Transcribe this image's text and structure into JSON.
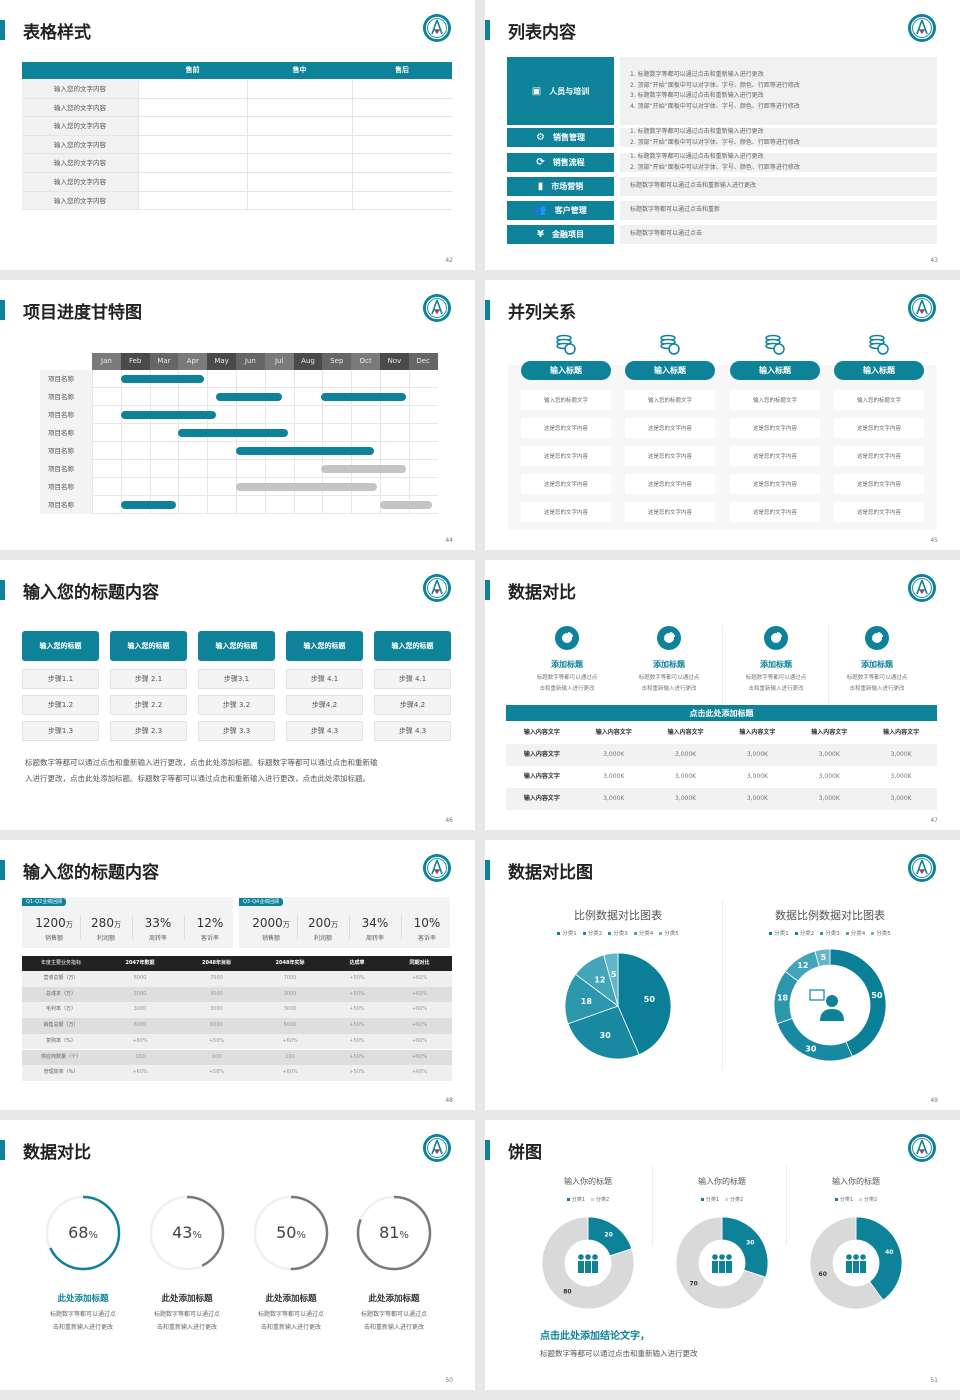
{
  "colors": {
    "accent": "#0e8299",
    "gray_bar": "#c4c4c4",
    "dark_header": "#222222",
    "pie": [
      "#0a7f97",
      "#1889a1",
      "#2c96ad",
      "#44a5ba",
      "#63b6c7"
    ],
    "ring_gray": "#7a7a7a",
    "donut_gray": "#d9d9d9"
  },
  "s42": {
    "title": "表格样式",
    "page": "42",
    "headers": [
      "",
      "售前",
      "售中",
      "售后"
    ],
    "rows": [
      "输入您的文字内容",
      "输入您的文字内容",
      "输入您的文字内容",
      "输入您的文字内容",
      "输入您的文字内容",
      "输入您的文字内容",
      "输入您的文字内容"
    ]
  },
  "s43": {
    "title": "列表内容",
    "page": "43",
    "items": [
      {
        "icon": "training-icon",
        "label": "人员与培训",
        "lines": [
          "1.  标题数字等都可以通过点击和重新输入进行更改",
          "2.  顶部“开始”面板中可以对字体、字号、颜色、行距等进行修改",
          "3.  标题数字等都可以通过点击和重新输入进行更改",
          "4.  顶部“开始”面板中可以对字体、字号、颜色、行距等进行修改"
        ]
      },
      {
        "icon": "sales-management-icon",
        "label": "销售管理",
        "lines": [
          "1.  标题数字等都可以通过点击和重新输入进行更改",
          "2.  顶部“开始”面板中可以对字体、字号、颜色、行距等进行修改"
        ]
      },
      {
        "icon": "sales-process-icon",
        "label": "销售流程",
        "lines": [
          "1.  标题数字等都可以通过点击和重新输入进行更改",
          "2.  顶部“开始”面板中可以对字体、字号、颜色、行距等进行修改"
        ]
      },
      {
        "icon": "bar-chart-icon",
        "label": "市场营销",
        "lines": [
          "标题数字等都可以通过点击和重新输入进行更改"
        ]
      },
      {
        "icon": "customers-icon",
        "label": "客户管理",
        "lines": [
          "标题数字等都可以通过点击和重新"
        ]
      },
      {
        "icon": "finance-icon",
        "label": "金融项目",
        "lines": [
          "标题数字等都可以通过点击"
        ]
      }
    ]
  },
  "s44": {
    "title": "项目进度甘特图",
    "page": "44",
    "months": [
      "Jan",
      "Feb",
      "Mar",
      "Apr",
      "May",
      "Jun",
      "Jul",
      "Aug",
      "Sep",
      "Oct",
      "Nov",
      "Dec"
    ],
    "tasks": [
      {
        "name": "项目名称",
        "bars": [
          {
            "start": 1.0,
            "end": 3.9,
            "color": "teal"
          }
        ]
      },
      {
        "name": "项目名称",
        "bars": [
          {
            "start": 4.3,
            "end": 6.6,
            "color": "teal"
          },
          {
            "start": 7.95,
            "end": 10.9,
            "color": "teal"
          }
        ]
      },
      {
        "name": "项目名称",
        "bars": [
          {
            "start": 1.0,
            "end": 4.3,
            "color": "teal"
          }
        ]
      },
      {
        "name": "项目名称",
        "bars": [
          {
            "start": 3.0,
            "end": 6.8,
            "color": "teal"
          }
        ]
      },
      {
        "name": "项目名称",
        "bars": [
          {
            "start": 5.0,
            "end": 9.8,
            "color": "teal"
          }
        ]
      },
      {
        "name": "项目名称",
        "bars": [
          {
            "start": 7.95,
            "end": 10.9,
            "color": "gray"
          }
        ]
      },
      {
        "name": "项目名称",
        "bars": [
          {
            "start": 5.0,
            "end": 9.9,
            "color": "gray"
          }
        ]
      },
      {
        "name": "项目名称",
        "bars": [
          {
            "start": 1.0,
            "end": 2.9,
            "color": "teal"
          },
          {
            "start": 10.0,
            "end": 11.8,
            "color": "gray"
          }
        ]
      }
    ]
  },
  "s45": {
    "title": "并列关系",
    "page": "45",
    "columns": [
      {
        "header": "输入标题",
        "cells": [
          "输入您的标题文字",
          "这是您的文字内容",
          "这是您的文字内容",
          "这是您的文字内容",
          "这是您的文字内容"
        ]
      },
      {
        "header": "输入标题",
        "cells": [
          "输入您的标题文字",
          "这是您的文字内容",
          "这是您的文字内容",
          "这是您的文字内容",
          "这是您的文字内容"
        ]
      },
      {
        "header": "输入标题",
        "cells": [
          "输入您的标题文字",
          "这是您的文字内容",
          "这是您的文字内容",
          "这是您的文字内容",
          "这是您的文字内容"
        ]
      },
      {
        "header": "输入标题",
        "cells": [
          "输入您的标题文字",
          "这是您的文字内容",
          "这是您的文字内容",
          "这是您的文字内容",
          "这是您的文字内容"
        ]
      }
    ]
  },
  "s46": {
    "title": "输入您的标题内容",
    "page": "46",
    "columns": [
      {
        "header": "输入您的标题",
        "steps": [
          "步骤1.1",
          "步骤1.2",
          "步骤1.3"
        ]
      },
      {
        "header": "输入您的标题",
        "steps": [
          "步骤 2.1",
          "步骤 2.2",
          "步骤 2.3"
        ]
      },
      {
        "header": "输入您的标题",
        "steps": [
          "步骤3.1",
          "步骤 3.2",
          "步骤 3.3"
        ]
      },
      {
        "header": "输入您的标题",
        "steps": [
          "步骤 4.1",
          "步骤4.2",
          "步骤 4.3"
        ]
      },
      {
        "header": "输入您的标题",
        "steps": [
          "步骤 4.1",
          "步骤4.2",
          "步骤 4.3"
        ]
      }
    ],
    "paragraph": [
      "标题数字等都可以通过点击和重新输入进行更改，点击此处添加标题。标题数字等都可以通过点击和重新输",
      "入进行更改，点击此处添加标题。标题数字等都可以通过点击和重新输入进行更改，点击此处添加标题。"
    ]
  },
  "s47": {
    "title": "数据对比",
    "page": "47",
    "features": [
      {
        "title": "添加标题",
        "desc": [
          "标题数字等都可以通过点",
          "击和重新输入进行更改"
        ]
      },
      {
        "title": "添加标题",
        "desc": [
          "标题数字等都可以通过点",
          "击和重新输入进行更改"
        ]
      },
      {
        "title": "添加标题",
        "desc": [
          "标题数字等都可以通过点",
          "击和重新输入进行更改"
        ]
      },
      {
        "title": "添加标题",
        "desc": [
          "标题数字等都可以通过点",
          "击和重新输入进行更改"
        ]
      }
    ],
    "bar_title": "点击此处添加标题",
    "table": {
      "header": [
        "输入内容文字",
        "输入内容文字",
        "输入内容文字",
        "输入内容文字",
        "输入内容文字",
        "输入内容文字"
      ],
      "rows": [
        [
          "输入内容文字",
          "3,000K",
          "3,000K",
          "3,000K",
          "3,000K",
          "3,000K"
        ],
        [
          "输入内容文字",
          "3,000K",
          "3,000K",
          "3,000K",
          "3,000K",
          "3,000K"
        ],
        [
          "输入内容文字",
          "3,000K",
          "3,000K",
          "3,000K",
          "3,000K",
          "3,000K"
        ]
      ]
    }
  },
  "s48": {
    "title": "输入您的标题内容",
    "page": "48",
    "panels": [
      {
        "tag": "Q1-Q2业绩回顾",
        "stats": [
          {
            "value": "1200",
            "unit": "万",
            "label": "销售额"
          },
          {
            "value": "280",
            "unit": "万",
            "label": "利润额"
          },
          {
            "value": "33%",
            "unit": "",
            "label": "周转率"
          },
          {
            "value": "12%",
            "unit": "",
            "label": "客诉率"
          }
        ]
      },
      {
        "tag": "Q3-Q4业绩回顾",
        "stats": [
          {
            "value": "2000",
            "unit": "万",
            "label": "销售额"
          },
          {
            "value": "200",
            "unit": "万",
            "label": "利润额"
          },
          {
            "value": "34%",
            "unit": "",
            "label": "周转率"
          },
          {
            "value": "10%",
            "unit": "",
            "label": "客诉率"
          }
        ]
      }
    ],
    "table": {
      "header": [
        "年度主要业务指标",
        "2047年数据",
        "2048年目标",
        "2048年实际",
        "达成率",
        "同期对比"
      ],
      "rows": [
        [
          "营收总额（万）",
          "6000",
          "7000",
          "7000",
          "+50%",
          "+60%"
        ],
        [
          "总成本（万）",
          "3000",
          "3000",
          "3000",
          "+50%",
          "+60%"
        ],
        [
          "毛利率（万）",
          "3000",
          "3000",
          "3000",
          "+50%",
          "+60%"
        ],
        [
          "销售总额（万）",
          "6000",
          "6000",
          "6000",
          "+50%",
          "+60%"
        ],
        [
          "复购率（%）",
          "+60%",
          "+50%",
          "+60%",
          "+50%",
          "+60%"
        ],
        [
          "供应商数量（个）",
          "100",
          "100",
          "100",
          "+50%",
          "+60%"
        ],
        [
          "管理效率（%）",
          "+60%",
          "+50%",
          "+60%",
          "+50%",
          "+60%"
        ]
      ]
    }
  },
  "s49": {
    "title": "数据对比图",
    "page": "49",
    "chart_data": [
      {
        "type": "pie",
        "title": "比例数据对比图表",
        "categories": [
          "分类1",
          "分类2",
          "分类3",
          "分类4",
          "分类5"
        ],
        "values": [
          50,
          30,
          18,
          12,
          5
        ],
        "legend": "top"
      },
      {
        "type": "pie",
        "subtype": "donut",
        "title": "数据比例数据对比图表",
        "categories": [
          "分类1",
          "分类2",
          "分类3",
          "分类4",
          "分类5"
        ],
        "values": [
          50,
          30,
          18,
          12,
          5
        ],
        "legend": "top",
        "center_icon": "customer-service-icon"
      }
    ]
  },
  "s50": {
    "title": "数据对比",
    "page": "50",
    "rings": [
      {
        "value": 68,
        "label": "68",
        "unit": "%",
        "title": "此处添加标题",
        "desc": [
          "标题数字等都可以通过点",
          "击和重新输入进行更改"
        ],
        "highlight": true
      },
      {
        "value": 43,
        "label": "43",
        "unit": "%",
        "title": "此处添加标题",
        "desc": [
          "标题数字等都可以通过点",
          "击和重新输入进行更改"
        ],
        "highlight": false
      },
      {
        "value": 50,
        "label": "50",
        "unit": "%",
        "title": "此处添加标题",
        "desc": [
          "标题数字等都可以通过点",
          "击和重新输入进行更改"
        ],
        "highlight": false
      },
      {
        "value": 81,
        "label": "81",
        "unit": "%",
        "title": "此处添加标题",
        "desc": [
          "标题数字等都可以通过点",
          "击和重新输入进行更改"
        ],
        "highlight": false
      }
    ]
  },
  "s51": {
    "title": "饼图",
    "page": "51",
    "chart_data": [
      {
        "type": "pie",
        "subtype": "donut",
        "title": "输入你的标题",
        "categories": [
          "分类1",
          "分类2"
        ],
        "values": [
          20,
          80
        ],
        "legend": "top"
      },
      {
        "type": "pie",
        "subtype": "donut",
        "title": "输入你的标题",
        "categories": [
          "分类1",
          "分类2"
        ],
        "values": [
          30,
          70
        ],
        "legend": "top"
      },
      {
        "type": "pie",
        "subtype": "donut",
        "title": "输入你的标题",
        "categories": [
          "分类1",
          "分类2"
        ],
        "values": [
          40,
          60
        ],
        "legend": "top"
      }
    ],
    "conclusion": "点击此处添加结论文字，",
    "conclusion_desc": "标题数字等都可以通过点击和重新输入进行更改"
  }
}
